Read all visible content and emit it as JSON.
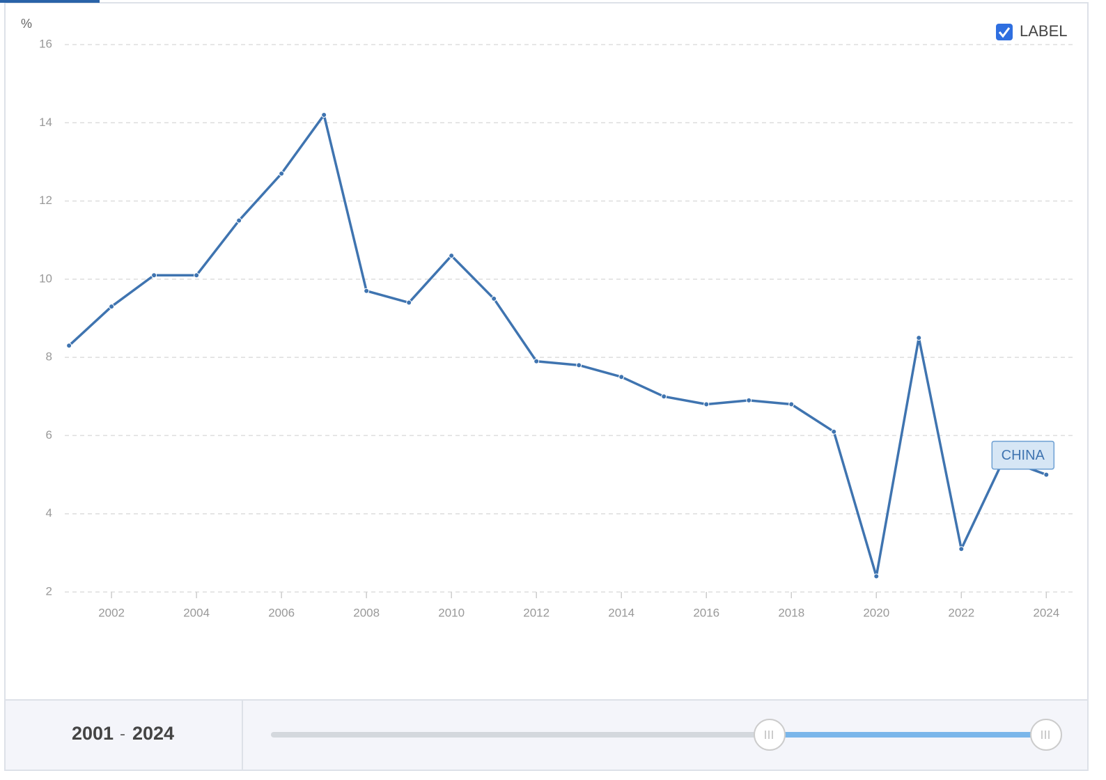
{
  "chart_data": {
    "type": "line",
    "y_unit": "%",
    "x": [
      2001,
      2002,
      2003,
      2004,
      2005,
      2006,
      2007,
      2008,
      2009,
      2010,
      2011,
      2012,
      2013,
      2014,
      2015,
      2016,
      2017,
      2018,
      2019,
      2020,
      2021,
      2022,
      2023,
      2024
    ],
    "series": [
      {
        "name": "CHINA",
        "color": "#3f74b0",
        "values": [
          8.3,
          9.3,
          10.1,
          10.1,
          11.5,
          12.7,
          14.2,
          9.7,
          9.4,
          10.6,
          9.5,
          7.9,
          7.8,
          7.5,
          7.0,
          6.8,
          6.9,
          6.8,
          6.1,
          2.4,
          8.5,
          3.1,
          5.4,
          5.0
        ]
      }
    ],
    "xlim": [
      2000.9,
      2024.7
    ],
    "xticks": [
      2002,
      2004,
      2006,
      2008,
      2010,
      2012,
      2014,
      2016,
      2018,
      2020,
      2022,
      2024
    ],
    "ylim": [
      2,
      16
    ],
    "yticks": [
      2,
      4,
      6,
      8,
      10,
      12,
      14,
      16
    ],
    "grid": true,
    "legend": {
      "label": "LABEL",
      "checked": true,
      "position": "top-right"
    }
  },
  "slider": {
    "start": "2001",
    "separator": "-",
    "end": "2024"
  }
}
